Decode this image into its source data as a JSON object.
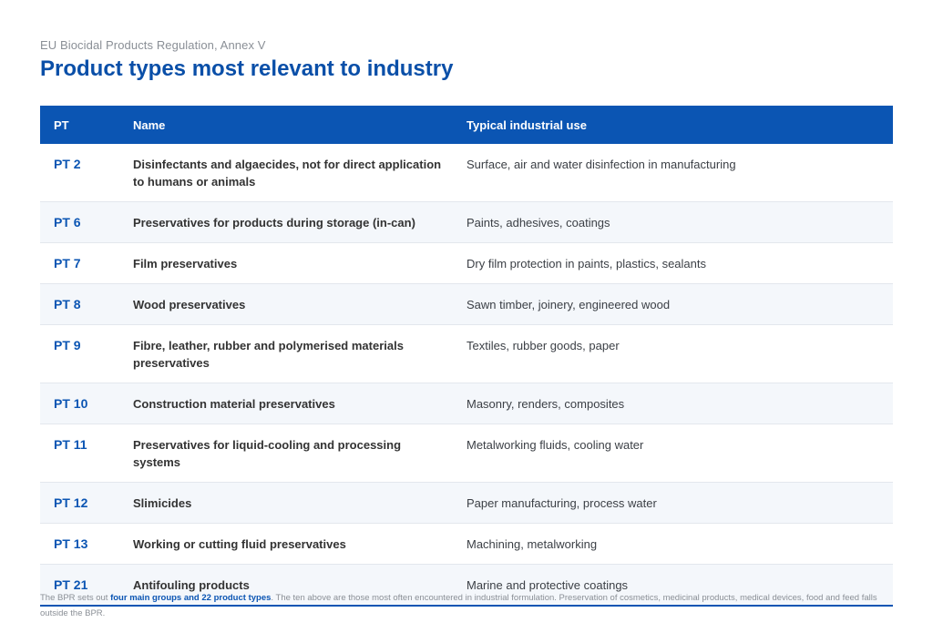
{
  "header": {
    "kicker": "EU Biocidal Products Regulation, Annex V",
    "title": "Product types most relevant to industry"
  },
  "table": {
    "columns": [
      "PT",
      "Name",
      "Typical industrial use"
    ],
    "rows": [
      {
        "pt": "PT 2",
        "name": "Disinfectants and algaecides, not for direct application to humans or animals",
        "use": "Surface, air and water disinfection in manufacturing"
      },
      {
        "pt": "PT 6",
        "name": "Preservatives for products during storage (in-can)",
        "use": "Paints, adhesives, coatings"
      },
      {
        "pt": "PT 7",
        "name": "Film preservatives",
        "use": "Dry film protection in paints, plastics, sealants"
      },
      {
        "pt": "PT 8",
        "name": "Wood preservatives",
        "use": "Sawn timber, joinery, engineered wood"
      },
      {
        "pt": "PT 9",
        "name": "Fibre, leather, rubber and polymerised materials preservatives",
        "use": "Textiles, rubber goods, paper"
      },
      {
        "pt": "PT 10",
        "name": "Construction material preservatives",
        "use": "Masonry, renders, composites"
      },
      {
        "pt": "PT 11",
        "name": "Preservatives for liquid-cooling and processing systems",
        "use": "Metalworking fluids, cooling water"
      },
      {
        "pt": "PT 12",
        "name": "Slimicides",
        "use": "Paper manufacturing, process water"
      },
      {
        "pt": "PT 13",
        "name": "Working or cutting fluid preservatives",
        "use": "Machining, metalworking"
      },
      {
        "pt": "PT 21",
        "name": "Antifouling products",
        "use": "Marine and protective coatings"
      }
    ]
  },
  "footnote": {
    "prefix": "The BPR sets out ",
    "highlight": "four main groups and 22 product types",
    "suffix": ". The ten above are those most often encountered in industrial formulation. Preservation of cosmetics, medicinal products, medical devices, food and feed falls outside the BPR."
  },
  "colors": {
    "accent": "#0b55b3",
    "title": "#0a4fa8",
    "muted_text": "#8a8f96",
    "row_alt": "#f4f7fb"
  }
}
